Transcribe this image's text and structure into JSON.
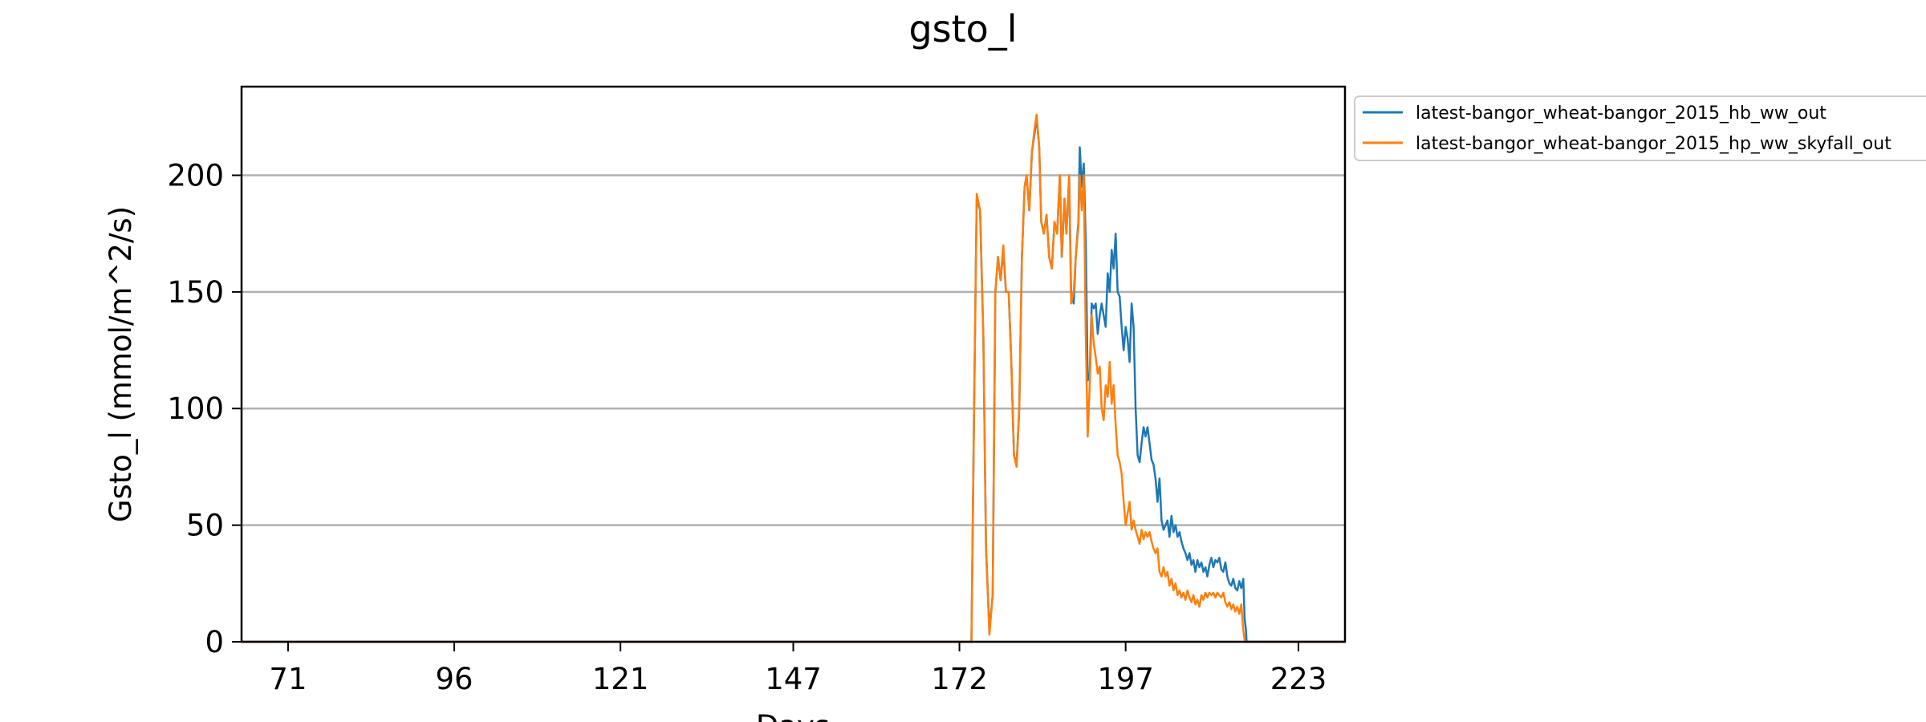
{
  "chart_data": {
    "type": "line",
    "title": "gsto_l",
    "xlabel": "Days",
    "ylabel": "Gsto_l (mmol/m^2/s)",
    "xlim": [
      64,
      230
    ],
    "ylim": [
      0,
      238
    ],
    "xticks": [
      71,
      96,
      121,
      147,
      172,
      197,
      223
    ],
    "yticks": [
      0,
      50,
      100,
      150,
      200
    ],
    "grid": "horizontal",
    "legend_position": "outside-top-right",
    "series": [
      {
        "name": "latest-bangor_wheat-bangor_2015_hb_ww_out",
        "color": "#1f77b4",
        "points": [
          [
            64,
            0
          ],
          [
            173.8,
            0
          ],
          [
            174.2,
            100
          ],
          [
            174.6,
            190
          ],
          [
            175.1,
            185
          ],
          [
            175.6,
            130
          ],
          [
            176.0,
            40
          ],
          [
            176.5,
            5
          ],
          [
            177.0,
            20
          ],
          [
            177.4,
            150
          ],
          [
            177.8,
            165
          ],
          [
            178.2,
            155
          ],
          [
            178.6,
            168
          ],
          [
            179.0,
            150
          ],
          [
            179.4,
            150
          ],
          [
            179.8,
            120
          ],
          [
            180.2,
            80
          ],
          [
            180.6,
            76
          ],
          [
            181.0,
            100
          ],
          [
            181.4,
            165
          ],
          [
            181.8,
            195
          ],
          [
            182.1,
            200
          ],
          [
            182.5,
            185
          ],
          [
            182.9,
            210
          ],
          [
            183.3,
            218
          ],
          [
            183.6,
            225
          ],
          [
            184.0,
            212
          ],
          [
            184.3,
            180
          ],
          [
            184.7,
            175
          ],
          [
            185.1,
            183
          ],
          [
            185.5,
            165
          ],
          [
            185.9,
            160
          ],
          [
            186.3,
            180
          ],
          [
            186.7,
            175
          ],
          [
            187.1,
            200
          ],
          [
            187.4,
            165
          ],
          [
            187.8,
            190
          ],
          [
            188.1,
            175
          ],
          [
            188.5,
            200
          ],
          [
            188.8,
            150
          ],
          [
            189.2,
            145
          ],
          [
            189.5,
            165
          ],
          [
            189.9,
            180
          ],
          [
            190.1,
            212
          ],
          [
            190.4,
            195
          ],
          [
            190.7,
            205
          ],
          [
            191.0,
            170
          ],
          [
            191.3,
            112
          ],
          [
            191.6,
            115
          ],
          [
            191.9,
            145
          ],
          [
            192.2,
            143
          ],
          [
            192.5,
            145
          ],
          [
            192.8,
            132
          ],
          [
            193.1,
            140
          ],
          [
            193.4,
            145
          ],
          [
            193.7,
            140
          ],
          [
            194.0,
            135
          ],
          [
            194.3,
            158
          ],
          [
            194.6,
            150
          ],
          [
            194.9,
            168
          ],
          [
            195.2,
            160
          ],
          [
            195.5,
            175
          ],
          [
            195.8,
            150
          ],
          [
            196.1,
            148
          ],
          [
            196.4,
            135
          ],
          [
            196.7,
            125
          ],
          [
            197.0,
            135
          ],
          [
            197.3,
            130
          ],
          [
            197.6,
            120
          ],
          [
            197.9,
            145
          ],
          [
            198.2,
            135
          ],
          [
            198.5,
            100
          ],
          [
            198.8,
            80
          ],
          [
            199.1,
            77
          ],
          [
            199.4,
            85
          ],
          [
            199.7,
            92
          ],
          [
            200.0,
            88
          ],
          [
            200.3,
            92
          ],
          [
            200.6,
            85
          ],
          [
            200.9,
            78
          ],
          [
            201.2,
            76
          ],
          [
            201.5,
            70
          ],
          [
            201.8,
            60
          ],
          [
            202.1,
            70
          ],
          [
            202.4,
            52
          ],
          [
            202.7,
            48
          ],
          [
            203.0,
            50
          ],
          [
            203.3,
            52
          ],
          [
            203.6,
            45
          ],
          [
            203.9,
            54
          ],
          [
            204.2,
            47
          ],
          [
            204.5,
            50
          ],
          [
            204.8,
            45
          ],
          [
            205.1,
            47
          ],
          [
            205.4,
            43
          ],
          [
            205.7,
            40
          ],
          [
            206.0,
            38
          ],
          [
            206.3,
            35
          ],
          [
            206.6,
            38
          ],
          [
            206.9,
            33
          ],
          [
            207.2,
            35
          ],
          [
            207.5,
            30
          ],
          [
            207.8,
            35
          ],
          [
            208.1,
            32
          ],
          [
            208.4,
            34
          ],
          [
            208.7,
            30
          ],
          [
            209.0,
            32
          ],
          [
            209.3,
            28
          ],
          [
            209.6,
            33
          ],
          [
            209.9,
            36
          ],
          [
            210.2,
            32
          ],
          [
            210.5,
            35
          ],
          [
            210.8,
            34
          ],
          [
            211.1,
            36
          ],
          [
            211.4,
            31
          ],
          [
            211.7,
            30
          ],
          [
            212.0,
            34
          ],
          [
            212.3,
            28
          ],
          [
            212.6,
            25
          ],
          [
            212.9,
            24
          ],
          [
            213.2,
            27
          ],
          [
            213.5,
            23
          ],
          [
            213.8,
            22
          ],
          [
            214.1,
            26
          ],
          [
            214.4,
            23
          ],
          [
            214.7,
            27
          ],
          [
            214.9,
            10
          ],
          [
            215.1,
            5
          ],
          [
            215.2,
            0
          ],
          [
            230,
            0
          ]
        ]
      },
      {
        "name": "latest-bangor_wheat-bangor_2015_hp_ww_skyfall_out",
        "color": "#ff7f0e",
        "points": [
          [
            64,
            0
          ],
          [
            173.8,
            0
          ],
          [
            174.2,
            100
          ],
          [
            174.6,
            192
          ],
          [
            175.1,
            185
          ],
          [
            175.6,
            130
          ],
          [
            176.0,
            40
          ],
          [
            176.5,
            3
          ],
          [
            177.0,
            20
          ],
          [
            177.4,
            150
          ],
          [
            177.8,
            165
          ],
          [
            178.2,
            155
          ],
          [
            178.6,
            170
          ],
          [
            179.0,
            150
          ],
          [
            179.4,
            150
          ],
          [
            179.8,
            120
          ],
          [
            180.2,
            80
          ],
          [
            180.6,
            75
          ],
          [
            181.0,
            100
          ],
          [
            181.4,
            165
          ],
          [
            181.8,
            195
          ],
          [
            182.1,
            200
          ],
          [
            182.5,
            185
          ],
          [
            182.9,
            210
          ],
          [
            183.3,
            220
          ],
          [
            183.6,
            226
          ],
          [
            184.0,
            212
          ],
          [
            184.3,
            180
          ],
          [
            184.7,
            175
          ],
          [
            185.1,
            183
          ],
          [
            185.5,
            165
          ],
          [
            185.9,
            160
          ],
          [
            186.3,
            180
          ],
          [
            186.7,
            175
          ],
          [
            187.1,
            200
          ],
          [
            187.4,
            165
          ],
          [
            187.8,
            190
          ],
          [
            188.1,
            175
          ],
          [
            188.5,
            200
          ],
          [
            188.8,
            145
          ],
          [
            189.2,
            150
          ],
          [
            189.5,
            165
          ],
          [
            189.9,
            178
          ],
          [
            190.1,
            200
          ],
          [
            190.4,
            185
          ],
          [
            190.7,
            200
          ],
          [
            191.0,
            130
          ],
          [
            191.3,
            88
          ],
          [
            191.6,
            110
          ],
          [
            191.9,
            140
          ],
          [
            192.2,
            128
          ],
          [
            192.5,
            122
          ],
          [
            192.8,
            115
          ],
          [
            193.1,
            118
          ],
          [
            193.4,
            100
          ],
          [
            193.7,
            95
          ],
          [
            194.0,
            110
          ],
          [
            194.3,
            105
          ],
          [
            194.6,
            120
          ],
          [
            194.9,
            102
          ],
          [
            195.2,
            110
          ],
          [
            195.5,
            93
          ],
          [
            195.8,
            80
          ],
          [
            196.1,
            77
          ],
          [
            196.4,
            72
          ],
          [
            196.7,
            60
          ],
          [
            197.0,
            50
          ],
          [
            197.3,
            55
          ],
          [
            197.6,
            60
          ],
          [
            197.9,
            48
          ],
          [
            198.2,
            52
          ],
          [
            198.5,
            48
          ],
          [
            198.8,
            45
          ],
          [
            199.1,
            42
          ],
          [
            199.4,
            48
          ],
          [
            199.7,
            44
          ],
          [
            200.0,
            47
          ],
          [
            200.3,
            45
          ],
          [
            200.6,
            47
          ],
          [
            200.9,
            43
          ],
          [
            201.2,
            40
          ],
          [
            201.5,
            38
          ],
          [
            201.8,
            40
          ],
          [
            202.1,
            30
          ],
          [
            202.4,
            28
          ],
          [
            202.7,
            32
          ],
          [
            203.0,
            28
          ],
          [
            203.3,
            30
          ],
          [
            203.6,
            24
          ],
          [
            203.9,
            27
          ],
          [
            204.2,
            22
          ],
          [
            204.5,
            25
          ],
          [
            204.8,
            20
          ],
          [
            205.1,
            22
          ],
          [
            205.4,
            19
          ],
          [
            205.7,
            21
          ],
          [
            206.0,
            18
          ],
          [
            206.3,
            22
          ],
          [
            206.6,
            19
          ],
          [
            206.9,
            17
          ],
          [
            207.2,
            20
          ],
          [
            207.5,
            16
          ],
          [
            207.8,
            18
          ],
          [
            208.1,
            15
          ],
          [
            208.4,
            20
          ],
          [
            208.7,
            18
          ],
          [
            209.0,
            21
          ],
          [
            209.3,
            19
          ],
          [
            209.6,
            21
          ],
          [
            209.9,
            20
          ],
          [
            210.2,
            21
          ],
          [
            210.5,
            19
          ],
          [
            210.8,
            21
          ],
          [
            211.1,
            20
          ],
          [
            211.4,
            19
          ],
          [
            211.7,
            21
          ],
          [
            212.0,
            17
          ],
          [
            212.3,
            15
          ],
          [
            212.6,
            17
          ],
          [
            212.9,
            14
          ],
          [
            213.2,
            16
          ],
          [
            213.5,
            13
          ],
          [
            213.8,
            15
          ],
          [
            214.1,
            12
          ],
          [
            214.4,
            16
          ],
          [
            214.7,
            5
          ],
          [
            214.9,
            1
          ],
          [
            215.0,
            0
          ],
          [
            218.5,
            0
          ],
          [
            230,
            0
          ]
        ]
      }
    ]
  }
}
